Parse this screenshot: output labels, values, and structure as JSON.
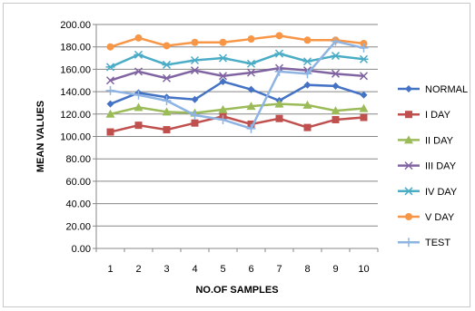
{
  "chart_data": {
    "type": "line",
    "xlabel": "NO.OF SAMPLES",
    "ylabel": "MEAN VALUES",
    "x": [
      1,
      2,
      3,
      4,
      5,
      6,
      7,
      8,
      9,
      10
    ],
    "x_tick_labels": [
      "1",
      "2",
      "3",
      "4",
      "5",
      "6",
      "7",
      "8",
      "9",
      "10"
    ],
    "ylim": [
      0,
      200
    ],
    "y_tick_labels": [
      "0.00",
      "20.00",
      "40.00",
      "60.00",
      "80.00",
      "100.00",
      "120.00",
      "140.00",
      "160.00",
      "180.00",
      "200.00"
    ],
    "grid": "horizontal",
    "legend_position": "right",
    "series": [
      {
        "name": "NORMAL",
        "color": "#4472C4",
        "marker": "diamond",
        "values": [
          129,
          139,
          135,
          133,
          149,
          142,
          132,
          146,
          145,
          137
        ]
      },
      {
        "name": "I DAY",
        "color": "#C0504D",
        "marker": "square",
        "values": [
          104,
          110,
          106,
          112,
          118,
          111,
          116,
          108,
          115,
          117
        ]
      },
      {
        "name": "II DAY",
        "color": "#9BBB59",
        "marker": "triangle",
        "values": [
          120,
          126,
          122,
          121,
          124,
          127,
          129,
          128,
          123,
          125
        ]
      },
      {
        "name": "III DAY",
        "color": "#8064A2",
        "marker": "x",
        "values": [
          150,
          158,
          152,
          159,
          154,
          157,
          161,
          159,
          156,
          154
        ]
      },
      {
        "name": "IV DAY",
        "color": "#4BACC6",
        "marker": "star",
        "values": [
          162,
          173,
          164,
          168,
          170,
          165,
          174,
          167,
          172,
          169
        ]
      },
      {
        "name": "V DAY",
        "color": "#F79646",
        "marker": "circle",
        "values": [
          180,
          188,
          181,
          184,
          184,
          187,
          190,
          186,
          186,
          183
        ]
      },
      {
        "name": "TEST",
        "color": "#8EB4E3",
        "marker": "plus",
        "values": [
          141,
          137,
          132,
          119,
          115,
          107,
          158,
          156,
          185,
          179
        ]
      }
    ]
  }
}
